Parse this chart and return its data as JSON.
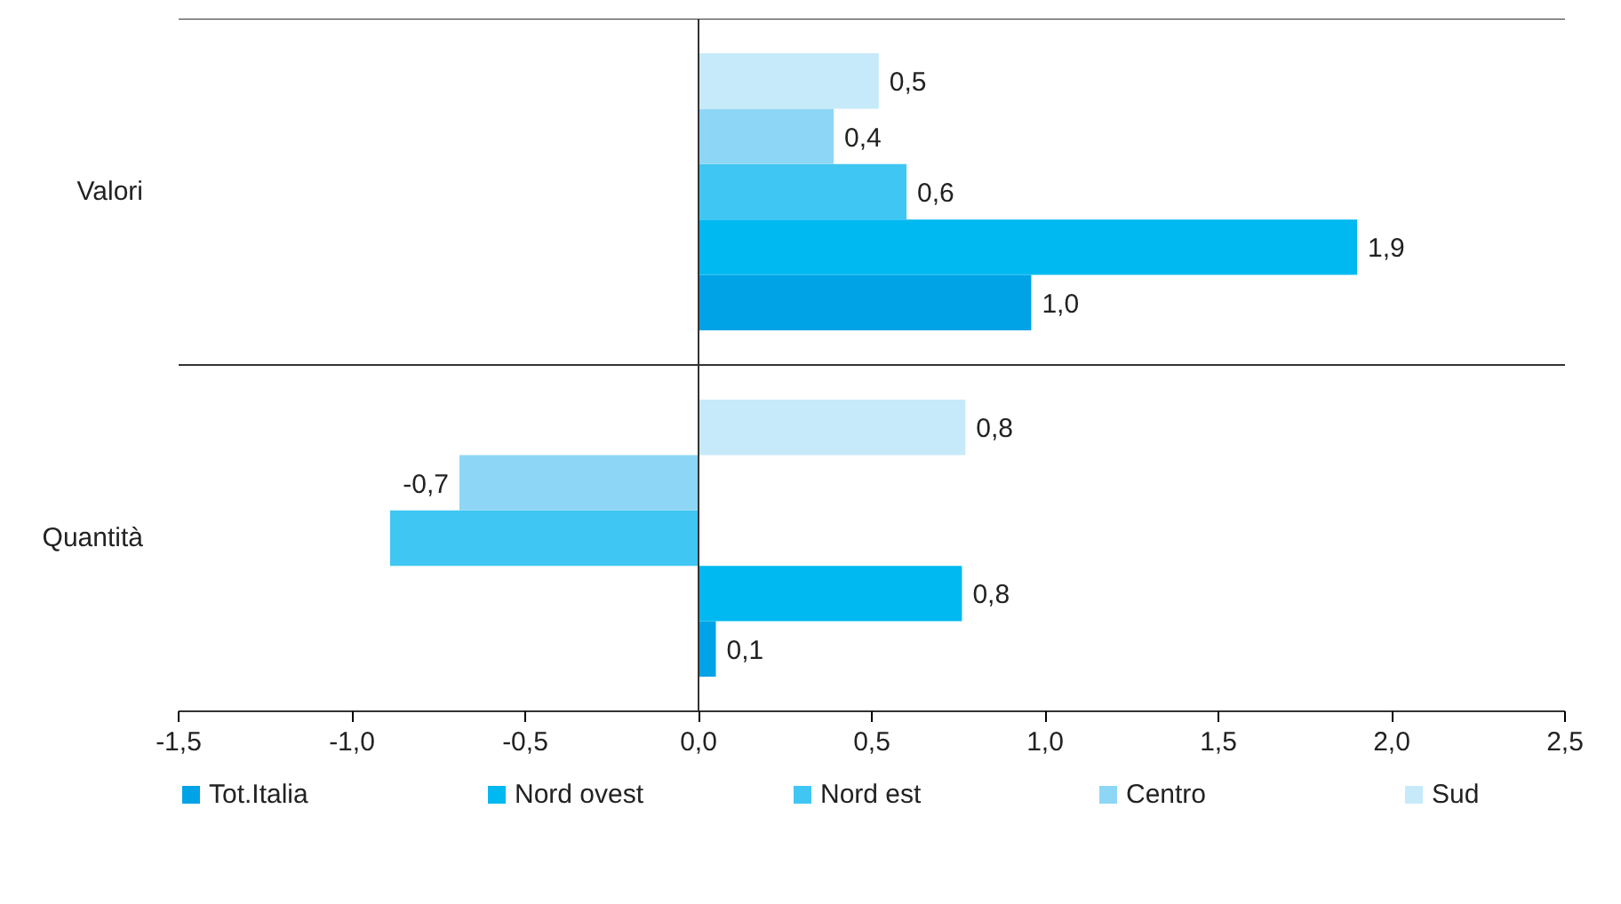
{
  "chart_data": {
    "type": "bar",
    "orientation": "horizontal",
    "categories": [
      "Valori",
      "Quantità"
    ],
    "series": [
      {
        "name": "Tot.Italia",
        "color": "#00a3e6",
        "values": [
          0.96,
          0.05
        ],
        "value_labels": [
          "1,0",
          "0,1"
        ]
      },
      {
        "name": "Nord ovest",
        "color": "#00b9f0",
        "values": [
          1.9,
          0.76
        ],
        "value_labels": [
          "1,9",
          "0,8"
        ]
      },
      {
        "name": "Nord est",
        "color": "#40c6f2",
        "values": [
          0.6,
          -0.89
        ],
        "value_labels": [
          "0,6",
          null
        ]
      },
      {
        "name": "Centro",
        "color": "#8ed6f5",
        "values": [
          0.39,
          -0.69
        ],
        "value_labels": [
          "0,4",
          "-0,7"
        ]
      },
      {
        "name": "Sud",
        "color": "#c6eafa",
        "values": [
          0.52,
          0.77
        ],
        "value_labels": [
          "0,5",
          "0,8"
        ]
      }
    ],
    "xlim": [
      -1.5,
      2.5
    ],
    "xticks": [
      {
        "value": -1.5,
        "label": "-1,5"
      },
      {
        "value": -1.0,
        "label": "-1,0"
      },
      {
        "value": -0.5,
        "label": "-0,5"
      },
      {
        "value": 0,
        "label": "0,0"
      },
      {
        "value": 0.5,
        "label": "0,5"
      },
      {
        "value": 1.0,
        "label": "1,0"
      },
      {
        "value": 1.5,
        "label": "1,5"
      },
      {
        "value": 2.0,
        "label": "2,0"
      },
      {
        "value": 2.5,
        "label": "2,5"
      }
    ],
    "ref_lines": [
      {
        "axis": "x",
        "value": 0,
        "label": null
      }
    ],
    "legend": "bottom",
    "grid": false
  }
}
